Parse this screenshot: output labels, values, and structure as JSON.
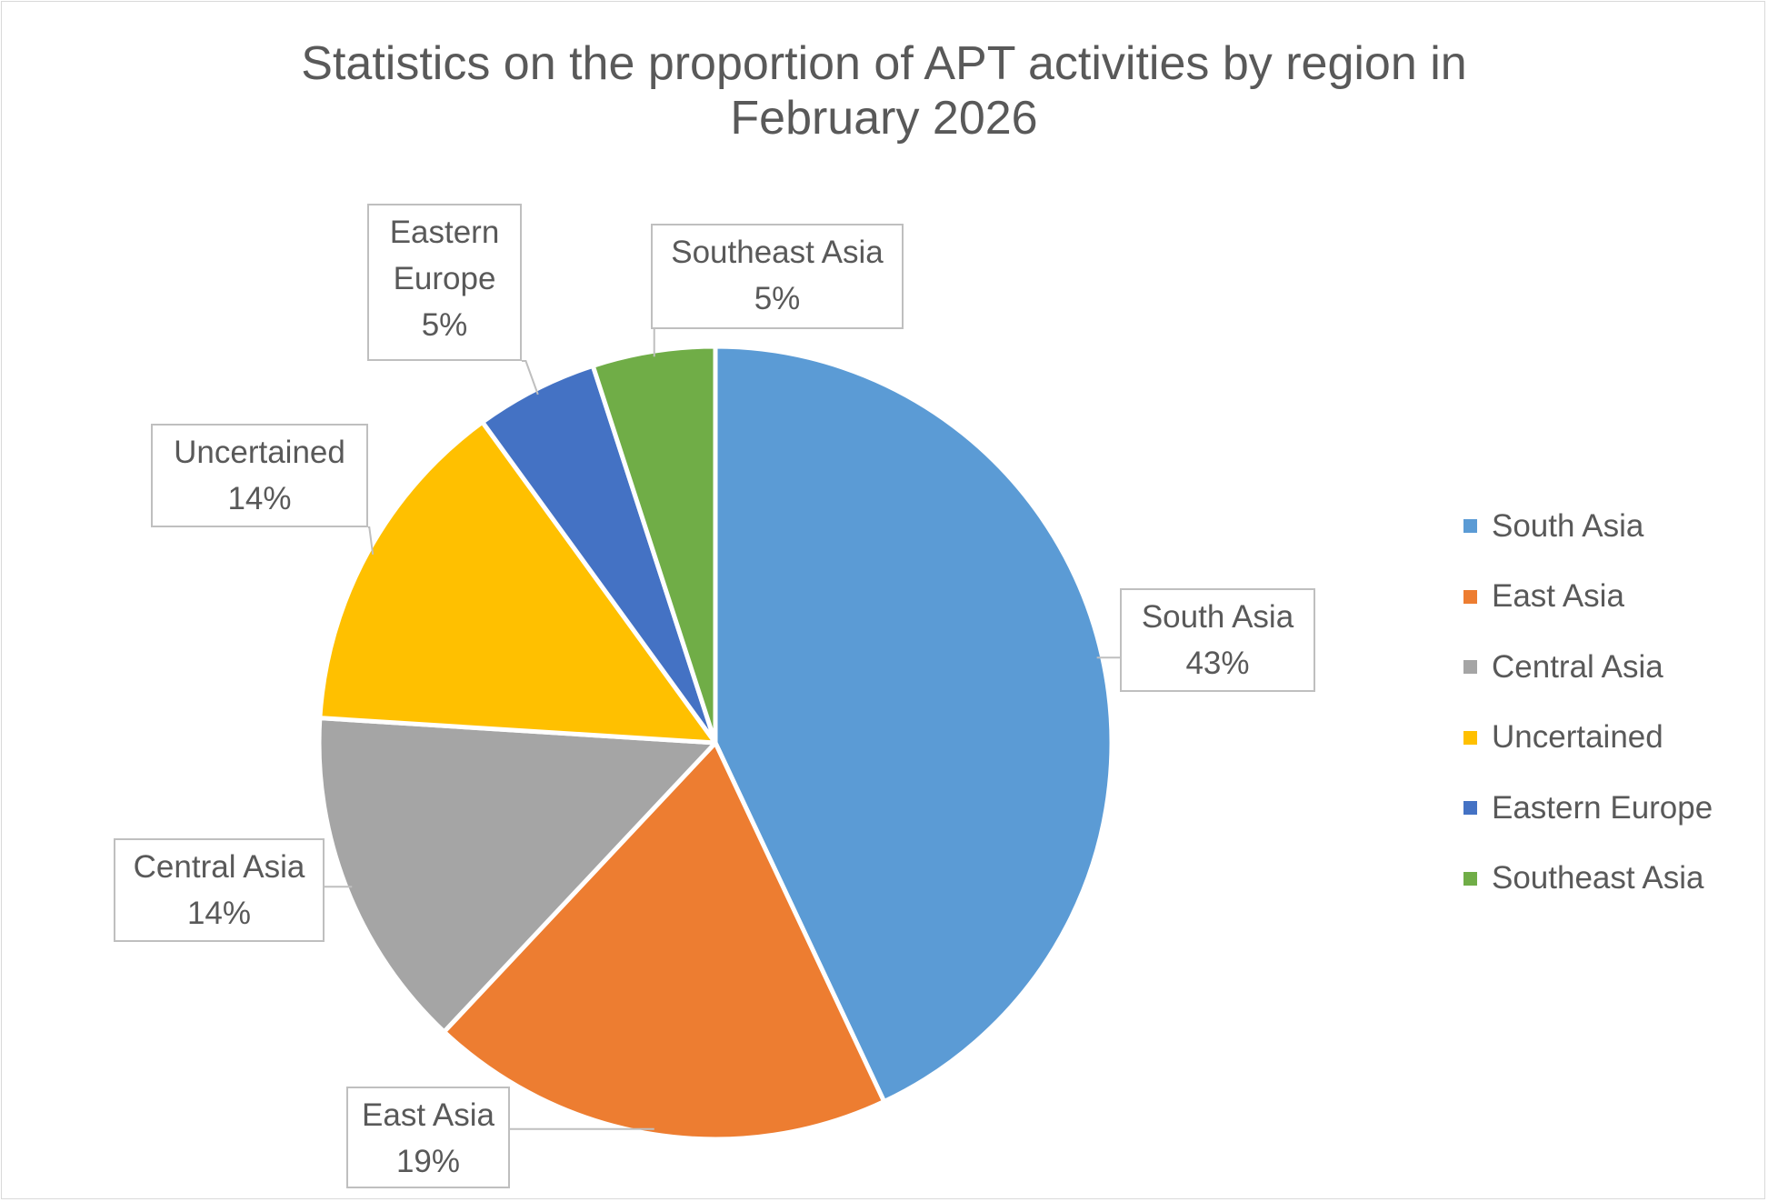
{
  "chart_data": {
    "type": "pie",
    "title": "Statistics on the proportion of APT activities by region in February 2026",
    "title_lines": [
      "Statistics on the proportion of APT activities by region in",
      "February 2026"
    ],
    "slices": [
      {
        "name": "South Asia",
        "value": 43,
        "label": "43%",
        "color": "#5b9bd5"
      },
      {
        "name": "East Asia",
        "value": 19,
        "label": "19%",
        "color": "#ed7d31"
      },
      {
        "name": "Central Asia",
        "value": 14,
        "label": "14%",
        "color": "#a5a5a5"
      },
      {
        "name": "Uncertained",
        "value": 14,
        "label": "14%",
        "color": "#ffc000"
      },
      {
        "name": "Eastern Europe",
        "value": 5,
        "label": "5%",
        "color": "#4472c4"
      },
      {
        "name": "Southeast Asia",
        "value": 5,
        "label": "5%",
        "color": "#70ad47"
      }
    ],
    "data_label_lines": [
      [
        "South Asia",
        "43%"
      ],
      [
        "East Asia",
        "19%"
      ],
      [
        "Central Asia",
        "14%"
      ],
      [
        "Uncertained",
        "14%"
      ],
      [
        "Eastern",
        "Europe",
        "5%"
      ],
      [
        "Southeast Asia",
        "5%"
      ]
    ],
    "legend_position": "right"
  }
}
